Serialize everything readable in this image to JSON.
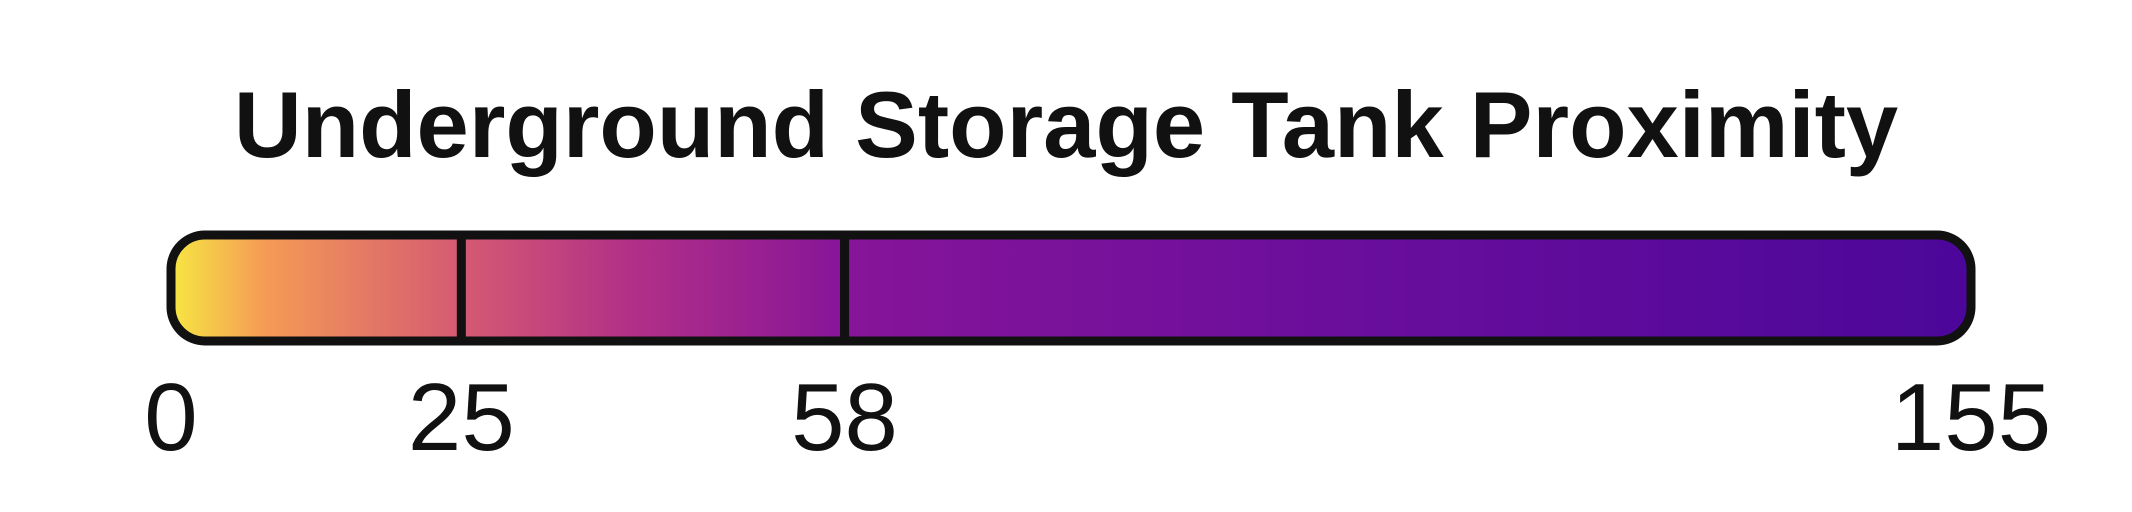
{
  "chart_data": {
    "type": "legend",
    "title": "Underground Storage Tank Proximity",
    "colormap": "plasma (reversed: yellow to dark purple)",
    "domain": [
      0,
      155
    ],
    "breaks": [
      0,
      25,
      58,
      155
    ],
    "tick_labels": [
      "0",
      "25",
      "58",
      "155"
    ],
    "gradient_stops": [
      {
        "value": 0,
        "color": "#f7e743"
      },
      {
        "value": 8,
        "color": "#f59b55"
      },
      {
        "value": 25,
        "color": "#d45a72"
      },
      {
        "value": 40,
        "color": "#b12f88"
      },
      {
        "value": 58,
        "color": "#861599"
      },
      {
        "value": 100,
        "color": "#6b0e9c"
      },
      {
        "value": 155,
        "color": "#4b079a"
      }
    ],
    "outline_color": "#111111"
  }
}
